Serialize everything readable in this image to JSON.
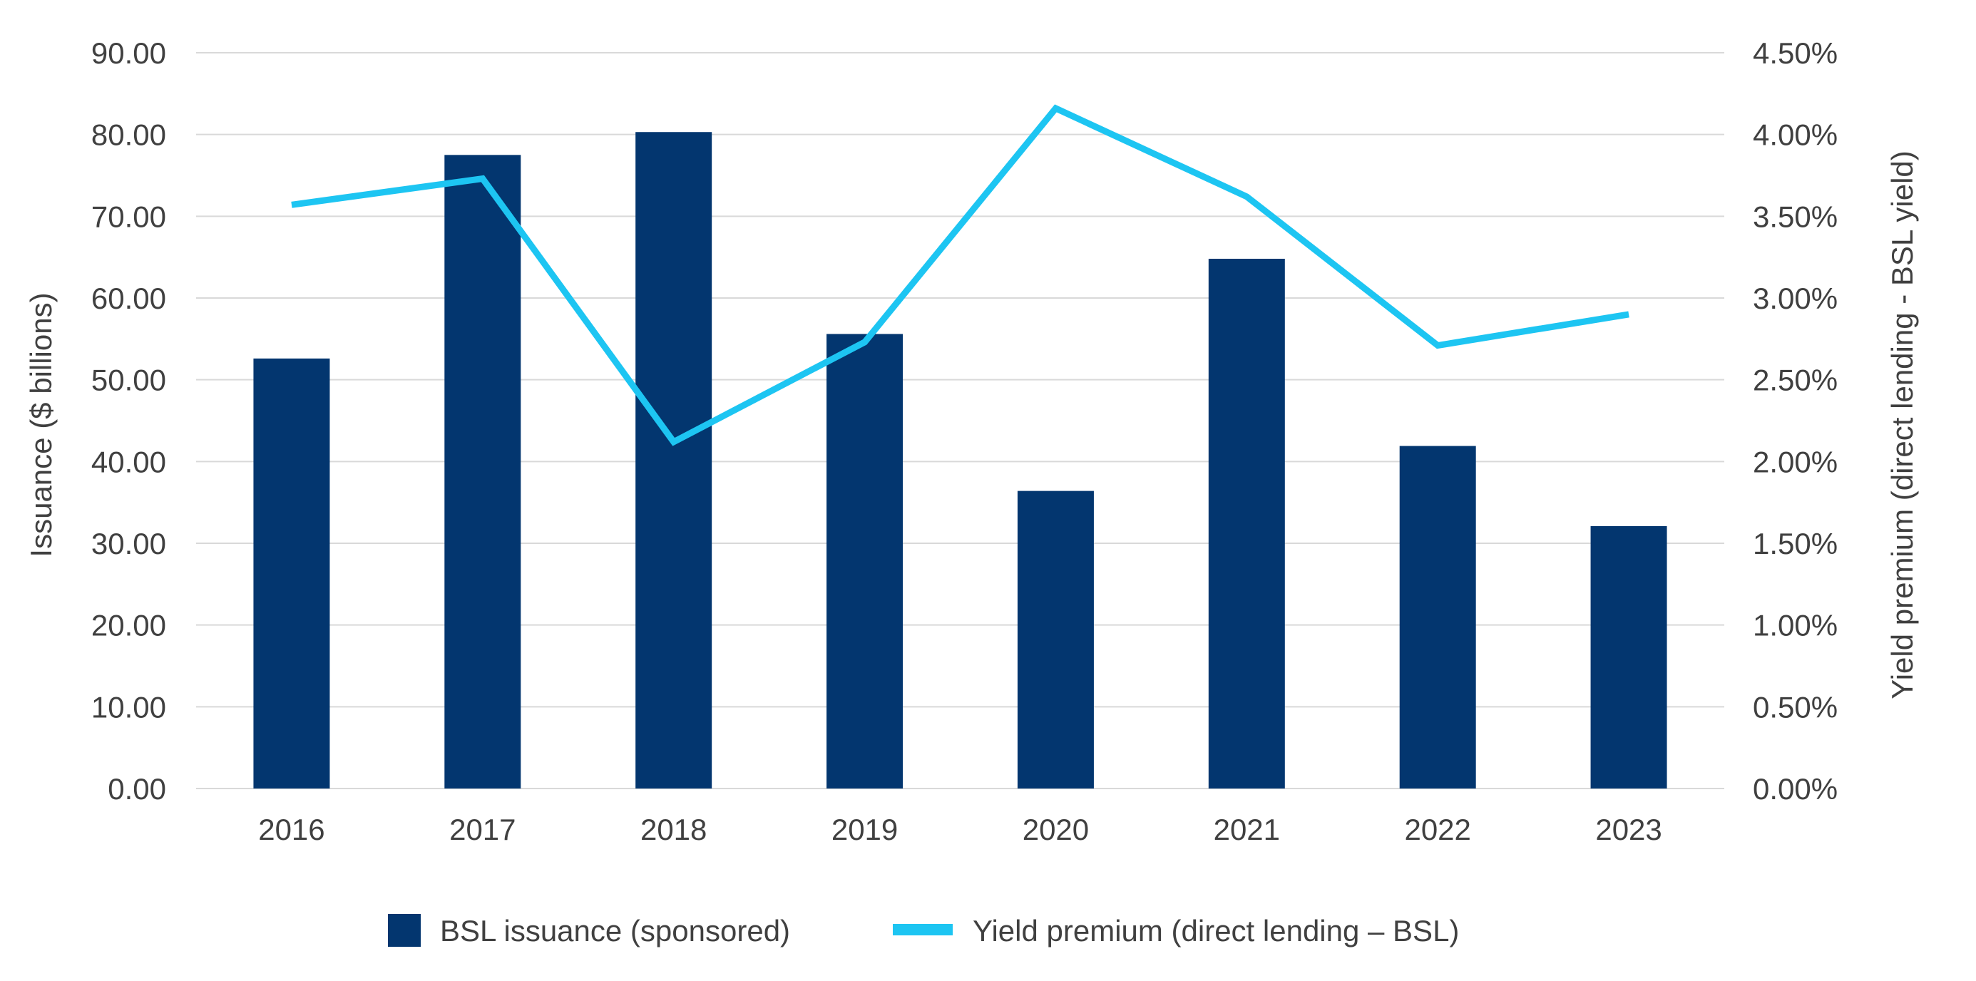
{
  "chart_data": {
    "type": "bar",
    "categories": [
      "2016",
      "2017",
      "2018",
      "2019",
      "2020",
      "2021",
      "2022",
      "2023"
    ],
    "series": [
      {
        "name": "BSL issuance (sponsored)",
        "type": "bar",
        "axis": "left",
        "color": "#03366f",
        "values": [
          52.6,
          77.5,
          80.3,
          55.6,
          36.4,
          64.8,
          41.9,
          32.1
        ]
      },
      {
        "name": "Yield premium (direct lending – BSL)",
        "type": "line",
        "axis": "right",
        "color": "#1dc5f2",
        "values": [
          3.57,
          3.73,
          2.12,
          2.73,
          4.16,
          3.62,
          2.71,
          2.9
        ]
      }
    ],
    "ylabel": "Issuance ($ billions)",
    "y2label": "Yield premium (direct lending - BSL yield)",
    "ylim": [
      0,
      90
    ],
    "y2lim": [
      0,
      4.5
    ],
    "yticks": [
      "0.00",
      "10.00",
      "20.00",
      "30.00",
      "40.00",
      "50.00",
      "60.00",
      "70.00",
      "80.00",
      "90.00"
    ],
    "y2ticks": [
      "0.00%",
      "0.50%",
      "1.00%",
      "1.50%",
      "2.00%",
      "2.50%",
      "3.00%",
      "3.50%",
      "4.00%",
      "4.50%"
    ],
    "grid": true,
    "legend_position": "bottom"
  }
}
